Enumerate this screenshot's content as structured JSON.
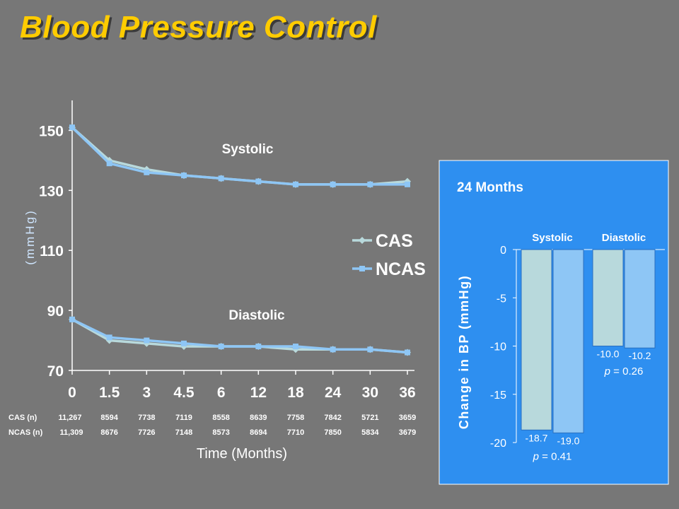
{
  "title": "Blood Pressure Control",
  "colors": {
    "background": "#777777",
    "title": "#ffcc00",
    "cas": "#b8d9dc",
    "ncas": "#8ec6f5",
    "panel": "#2e8ff0"
  },
  "chart_data": [
    {
      "type": "line",
      "ylabel": "(mmHg)",
      "xlabel": "Time (Months)",
      "ylim": [
        70,
        160
      ],
      "yticks": [
        70,
        90,
        110,
        130,
        150
      ],
      "categories": [
        "0",
        "1.5",
        "3",
        "4.5",
        "6",
        "12",
        "18",
        "24",
        "30",
        "36"
      ],
      "legend": [
        "CAS",
        "NCAS"
      ],
      "legend_position": "right",
      "annotations": {
        "systolic": "Systolic",
        "diastolic": "Diastolic"
      },
      "series": [
        {
          "name": "CAS",
          "group": "Systolic",
          "values": [
            151,
            140,
            137,
            135,
            134,
            133,
            132,
            132,
            132,
            133
          ]
        },
        {
          "name": "NCAS",
          "group": "Systolic",
          "values": [
            151,
            139,
            136,
            135,
            134,
            133,
            132,
            132,
            132,
            132
          ]
        },
        {
          "name": "CAS",
          "group": "Diastolic",
          "values": [
            87,
            80,
            79,
            78,
            78,
            78,
            77,
            77,
            77,
            76
          ]
        },
        {
          "name": "NCAS",
          "group": "Diastolic",
          "values": [
            87,
            81,
            80,
            79,
            78,
            78,
            78,
            77,
            77,
            76
          ]
        }
      ],
      "counts": {
        "cas_label": "CAS (n)",
        "ncas_label": "NCAS (n)",
        "cas": [
          "11,267",
          "8594",
          "7738",
          "7119",
          "8558",
          "8639",
          "7758",
          "7842",
          "5721",
          "3659"
        ],
        "ncas": [
          "11,309",
          "8676",
          "7726",
          "7148",
          "8573",
          "8694",
          "7710",
          "7850",
          "5834",
          "3679"
        ]
      }
    },
    {
      "type": "bar",
      "title": "24 Months",
      "ylabel": "Change in BP (mmHg)",
      "ylim": [
        -20,
        0
      ],
      "yticks": [
        0,
        -5,
        -10,
        -15,
        -20
      ],
      "categories": [
        "Systolic",
        "Diastolic"
      ],
      "series": [
        {
          "name": "CAS",
          "values": [
            -18.7,
            -10.0
          ]
        },
        {
          "name": "NCAS",
          "values": [
            -19.0,
            -10.2
          ]
        }
      ],
      "value_labels": [
        [
          "-18.7",
          "-19.0"
        ],
        [
          "-10.0",
          "-10.2"
        ]
      ],
      "p_values": [
        "p = 0.41",
        "p = 0.26"
      ]
    }
  ]
}
